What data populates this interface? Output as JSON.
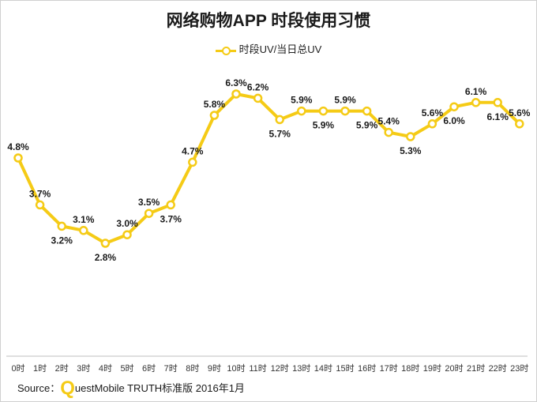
{
  "chart_data": {
    "type": "line",
    "title": "网络购物APP 时段使用习惯",
    "categories": [
      "0时",
      "1时",
      "2时",
      "3时",
      "4时",
      "5时",
      "6时",
      "7时",
      "8时",
      "9时",
      "10时",
      "11时",
      "12时",
      "13时",
      "14时",
      "15时",
      "16时",
      "17时",
      "18时",
      "19时",
      "20时",
      "21时",
      "22时",
      "23时"
    ],
    "series": [
      {
        "name": "时段UV/当日总UV",
        "values": [
          4.8,
          3.7,
          3.2,
          3.1,
          2.8,
          3.0,
          3.5,
          3.7,
          4.7,
          5.8,
          6.3,
          6.2,
          5.7,
          5.9,
          5.9,
          5.9,
          5.9,
          5.4,
          5.3,
          5.6,
          6.0,
          6.1,
          6.1,
          5.6
        ],
        "labels": [
          "4.8%",
          "3.7%",
          "3.2%",
          "3.1%",
          "2.8%",
          "3.0%",
          "3.5%",
          "3.7%",
          "4.7%",
          "5.8%",
          "6.3%",
          "6.2%",
          "5.7%",
          "5.9%",
          "5.9%",
          "5.9%",
          "5.9%",
          "5.4%",
          "5.3%",
          "5.6%",
          "6.0%",
          "6.1%",
          "6.1%",
          "5.6%"
        ]
      }
    ],
    "label_positions": [
      "above",
      "above",
      "below",
      "above",
      "below",
      "above",
      "above",
      "below",
      "above",
      "above",
      "above",
      "above",
      "below",
      "above",
      "below",
      "above",
      "below",
      "above",
      "below",
      "above",
      "below",
      "above",
      "below",
      "above"
    ],
    "grid": false,
    "legend_position": "top-center",
    "colors": {
      "line": "#f5cb16",
      "marker_fill": "#ffffff",
      "axis": "#bfbfbf",
      "text": "#1a1a1a"
    }
  },
  "source": {
    "prefix": "Source：",
    "brand_q": "Q",
    "text": "uestMobile TRUTH标准版 2016年1月"
  }
}
